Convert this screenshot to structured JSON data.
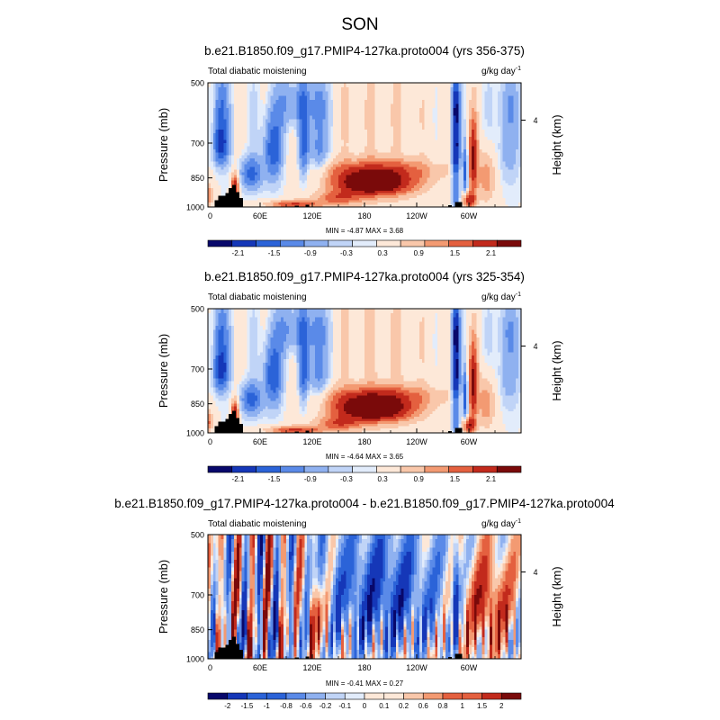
{
  "figure": {
    "title": "SON"
  },
  "colors": {
    "palette13": [
      "#08086b",
      "#1537b8",
      "#2b63d8",
      "#5a8ae8",
      "#8fb1f0",
      "#c0d4f7",
      "#e2ecfb",
      "#fde8d8",
      "#f9c7aa",
      "#f39a72",
      "#e4603f",
      "#c22a1c",
      "#7a0a0a"
    ],
    "land": "#000000"
  },
  "chart_data": [
    {
      "type": "heatmap",
      "title": "b.e21.B1850.f09_g17.PMIP4-127ka.proto004 (yrs 356-375)",
      "left_label": "Total diabatic moistening",
      "right_label_text": "g/kg day",
      "right_label_exp": "-1",
      "ylabel": "Pressure (mb)",
      "ylabel_right": "Height (km)",
      "x_ticks": [
        "0",
        "60E",
        "120E",
        "180",
        "120W",
        "60W"
      ],
      "x_tick_values": [
        0,
        60,
        120,
        180,
        240,
        300
      ],
      "xlim": [
        0,
        360
      ],
      "y_ticks": [
        "500",
        "700",
        "850",
        "1000"
      ],
      "y_tick_values": [
        500,
        700,
        850,
        1000
      ],
      "ylim": [
        1000,
        500
      ],
      "right_ticks": [
        "4"
      ],
      "right_tick_pressure": [
        616
      ],
      "min_max_text": "MIN = -4.87   MAX =  3.68",
      "colorbar_labels": [
        "-2.1",
        "-1.5",
        "-0.9",
        "-0.3",
        "0.3",
        "0.9",
        "1.5",
        "2.1"
      ],
      "colorbar_boxes": 13,
      "amplitude": 1.0,
      "mode": "mean"
    },
    {
      "type": "heatmap",
      "title": "b.e21.B1850.f09_g17.PMIP4-127ka.proto004 (yrs 325-354)",
      "left_label": "Total diabatic moistening",
      "right_label_text": "g/kg day",
      "right_label_exp": "-1",
      "ylabel": "Pressure (mb)",
      "ylabel_right": "Height (km)",
      "x_ticks": [
        "0",
        "60E",
        "120E",
        "180",
        "120W",
        "60W"
      ],
      "x_tick_values": [
        0,
        60,
        120,
        180,
        240,
        300
      ],
      "xlim": [
        0,
        360
      ],
      "y_ticks": [
        "500",
        "700",
        "850",
        "1000"
      ],
      "y_tick_values": [
        500,
        700,
        850,
        1000
      ],
      "ylim": [
        1000,
        500
      ],
      "right_ticks": [
        "4"
      ],
      "right_tick_pressure": [
        616
      ],
      "min_max_text": "MIN = -4.64   MAX =  3.65",
      "colorbar_labels": [
        "-2.1",
        "-1.5",
        "-0.9",
        "-0.3",
        "0.3",
        "0.9",
        "1.5",
        "2.1"
      ],
      "colorbar_boxes": 13,
      "amplitude": 0.97,
      "mode": "mean"
    },
    {
      "type": "heatmap",
      "title": "b.e21.B1850.f09_g17.PMIP4-127ka.proto004 - b.e21.B1850.f09_g17.PMIP4-127ka.proto004",
      "left_label": "Total diabatic moistening",
      "right_label_text": "g/kg day",
      "right_label_exp": "-1",
      "ylabel": "Pressure (mb)",
      "ylabel_right": "Height (km)",
      "x_ticks": [
        "0",
        "60E",
        "120E",
        "180",
        "120W",
        "60W"
      ],
      "x_tick_values": [
        0,
        60,
        120,
        180,
        240,
        300
      ],
      "xlim": [
        0,
        360
      ],
      "y_ticks": [
        "500",
        "700",
        "850",
        "1000"
      ],
      "y_tick_values": [
        500,
        700,
        850,
        1000
      ],
      "ylim": [
        1000,
        500
      ],
      "right_ticks": [
        "4"
      ],
      "right_tick_pressure": [
        616
      ],
      "min_max_text": "MIN = -0.41   MAX =  0.27",
      "colorbar_labels": [
        "-2",
        "-1.5",
        "-1",
        "-0.8",
        "-0.6",
        "-0.2",
        "-0.1",
        "0",
        "0.1",
        "0.2",
        "0.6",
        "0.8",
        "1",
        "1.5",
        "2"
      ],
      "colorbar_boxes": 16,
      "amplitude": 0.18,
      "mode": "diff"
    }
  ]
}
